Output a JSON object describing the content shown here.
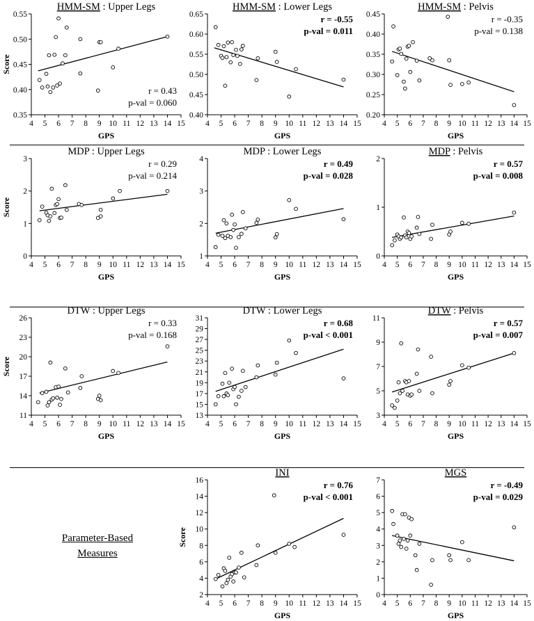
{
  "figure": {
    "section_label_line1": "Parameter-Based",
    "section_label_line2": "Measures"
  },
  "chart_data": [
    {
      "type": "scatter",
      "title": "HMM-SM : Upper Legs",
      "title_underline": "HMM-SM",
      "xlabel": "GPS",
      "ylabel": "Score",
      "xlim": [
        4,
        15
      ],
      "xticks": [
        4,
        5,
        6,
        7,
        8,
        9,
        10,
        11,
        12,
        13,
        14,
        15
      ],
      "ylim": [
        0.35,
        0.55
      ],
      "yticks": [
        0.35,
        0.4,
        0.45,
        0.5,
        0.55
      ],
      "ytick_labels": [
        "0.35",
        "0.40",
        "0.45",
        "0.50",
        "0.55"
      ],
      "r_text": "r = 0.43",
      "p_text": "p-val = 0.060",
      "bold": false,
      "stats_position": "bottom-right",
      "x": [
        4.6,
        4.8,
        5.1,
        5.2,
        5.3,
        5.4,
        5.6,
        5.7,
        5.8,
        5.9,
        6.0,
        6.1,
        6.3,
        6.5,
        6.6,
        7.6,
        7.6,
        8.9,
        9.0,
        9.1,
        10.0,
        10.4,
        14.0
      ],
      "y": [
        0.419,
        0.404,
        0.431,
        0.406,
        0.468,
        0.395,
        0.404,
        0.469,
        0.504,
        0.408,
        0.541,
        0.412,
        0.452,
        0.468,
        0.523,
        0.432,
        0.5,
        0.398,
        0.494,
        0.494,
        0.444,
        0.481,
        0.505
      ],
      "fit": [
        [
          4.5,
          0.437
        ],
        [
          14.0,
          0.505
        ]
      ]
    },
    {
      "type": "scatter",
      "title": "HMM-SM : Lower Legs",
      "title_underline": "HMM-SM",
      "xlabel": "GPS",
      "ylabel": "",
      "xlim": [
        4,
        15
      ],
      "xticks": [
        4,
        5,
        6,
        7,
        8,
        9,
        10,
        11,
        12,
        13,
        14,
        15
      ],
      "ylim": [
        0.4,
        0.65
      ],
      "yticks": [
        0.4,
        0.45,
        0.5,
        0.55,
        0.6,
        0.65
      ],
      "ytick_labels": [
        "0.40",
        "0.45",
        "0.50",
        "0.55",
        "0.60",
        "0.65"
      ],
      "r_text": "r = -0.55",
      "p_text": "p-val = 0.011",
      "bold": true,
      "stats_position": "top-right",
      "x": [
        4.6,
        4.8,
        5.0,
        5.1,
        5.2,
        5.3,
        5.4,
        5.5,
        5.7,
        5.8,
        5.9,
        6.1,
        6.2,
        6.4,
        6.5,
        6.6,
        7.6,
        7.7,
        9.0,
        9.1,
        10.0,
        10.5,
        14.0
      ],
      "y": [
        0.617,
        0.573,
        0.546,
        0.541,
        0.57,
        0.472,
        0.543,
        0.579,
        0.53,
        0.58,
        0.548,
        0.561,
        0.546,
        0.526,
        0.562,
        0.571,
        0.486,
        0.54,
        0.556,
        0.531,
        0.445,
        0.513,
        0.487
      ],
      "fit": [
        [
          4.5,
          0.566
        ],
        [
          14.0,
          0.469
        ]
      ]
    },
    {
      "type": "scatter",
      "title": "HMM-SM : Pelvis",
      "title_underline": "HMM-SM",
      "xlabel": "GPS",
      "ylabel": "",
      "xlim": [
        4,
        15
      ],
      "xticks": [
        4,
        5,
        6,
        7,
        8,
        9,
        10,
        11,
        12,
        13,
        14,
        15
      ],
      "ylim": [
        0.2,
        0.45
      ],
      "yticks": [
        0.2,
        0.25,
        0.3,
        0.35,
        0.4,
        0.45
      ],
      "ytick_labels": [
        "0.20",
        "0.25",
        "0.30",
        "0.35",
        "0.40",
        "0.45"
      ],
      "r_text": "r = -0.35",
      "p_text": "p-val = 0.138",
      "bold": false,
      "stats_position": "top-right",
      "x": [
        4.6,
        4.7,
        5.0,
        5.1,
        5.2,
        5.3,
        5.5,
        5.6,
        5.7,
        5.8,
        5.9,
        6.0,
        6.2,
        6.5,
        6.7,
        7.5,
        7.7,
        8.9,
        9.0,
        9.1,
        10.0,
        10.5,
        14.0
      ],
      "y": [
        0.332,
        0.419,
        0.298,
        0.362,
        0.364,
        0.351,
        0.282,
        0.265,
        0.339,
        0.369,
        0.371,
        0.306,
        0.38,
        0.334,
        0.285,
        0.34,
        0.335,
        0.443,
        0.335,
        0.274,
        0.276,
        0.28,
        0.224
      ],
      "fit": [
        [
          4.6,
          0.357
        ],
        [
          14.0,
          0.257
        ]
      ]
    },
    {
      "type": "scatter",
      "title": "MDP : Upper Legs",
      "title_underline": "",
      "xlabel": "GPS",
      "ylabel": "Score",
      "xlim": [
        4,
        15
      ],
      "xticks": [
        4,
        5,
        6,
        7,
        8,
        9,
        10,
        11,
        12,
        13,
        14,
        15
      ],
      "ylim": [
        0,
        3
      ],
      "yticks": [
        0,
        1,
        2,
        3
      ],
      "ytick_labels": [
        "0",
        "1",
        "2",
        "3"
      ],
      "r_text": "r = 0.29",
      "p_text": "p-val = 0.214",
      "bold": false,
      "stats_position": "top-right",
      "x": [
        4.6,
        4.8,
        5.1,
        5.2,
        5.3,
        5.4,
        5.5,
        5.7,
        5.8,
        5.9,
        6.0,
        6.1,
        6.2,
        6.5,
        6.6,
        7.5,
        7.7,
        8.9,
        9.1,
        9.1,
        10.0,
        10.5,
        14.0
      ],
      "y": [
        1.1,
        1.52,
        1.33,
        1.25,
        1.08,
        1.22,
        2.07,
        1.32,
        1.57,
        1.6,
        1.75,
        1.17,
        1.18,
        2.18,
        1.42,
        1.6,
        1.57,
        1.17,
        1.42,
        1.22,
        1.77,
        2.0,
        2.0
      ],
      "fit": [
        [
          4.6,
          1.39
        ],
        [
          14.0,
          1.9
        ]
      ]
    },
    {
      "type": "scatter",
      "title": "MDP : Lower Legs",
      "title_underline": "",
      "xlabel": "GPS",
      "ylabel": "",
      "xlim": [
        4,
        15
      ],
      "xticks": [
        4,
        5,
        6,
        7,
        8,
        9,
        10,
        11,
        12,
        13,
        14,
        15
      ],
      "ylim": [
        1,
        4
      ],
      "yticks": [
        1,
        2,
        3,
        4
      ],
      "ytick_labels": [
        "1",
        "2",
        "3",
        "4"
      ],
      "r_text": "r = 0.49",
      "p_text": "p-val = 0.028",
      "bold": true,
      "stats_position": "top-right",
      "x": [
        4.6,
        4.8,
        5.1,
        5.2,
        5.3,
        5.4,
        5.5,
        5.7,
        5.8,
        5.9,
        6.0,
        6.1,
        6.3,
        6.5,
        6.6,
        6.8,
        7.6,
        7.7,
        9.0,
        9.1,
        10.0,
        10.5,
        14.0
      ],
      "y": [
        1.27,
        1.65,
        1.62,
        2.1,
        1.55,
        2.0,
        1.62,
        1.58,
        2.27,
        1.8,
        1.97,
        1.25,
        1.58,
        1.68,
        2.35,
        1.85,
        2.02,
        2.12,
        1.57,
        1.67,
        2.72,
        2.45,
        2.13
      ],
      "fit": [
        [
          4.6,
          1.7
        ],
        [
          14.0,
          2.46
        ]
      ]
    },
    {
      "type": "scatter",
      "title": "MDP : Pelvis",
      "title_underline": "MDP",
      "xlabel": "GPS",
      "ylabel": "",
      "xlim": [
        4,
        15
      ],
      "xticks": [
        4,
        5,
        6,
        7,
        8,
        9,
        10,
        11,
        12,
        13,
        14,
        15
      ],
      "ylim": [
        0,
        2
      ],
      "yticks": [
        0,
        1,
        2
      ],
      "ytick_labels": [
        "0",
        "1",
        "2"
      ],
      "r_text": "r = 0.57",
      "p_text": "p-val = 0.008",
      "bold": true,
      "stats_position": "top-right",
      "x": [
        4.6,
        4.8,
        5.0,
        5.1,
        5.2,
        5.3,
        5.5,
        5.6,
        5.7,
        5.8,
        5.9,
        6.0,
        6.1,
        6.5,
        6.6,
        6.7,
        7.6,
        7.7,
        9.0,
        9.1,
        10.0,
        10.5,
        14.0
      ],
      "y": [
        0.22,
        0.32,
        0.44,
        0.4,
        0.35,
        0.38,
        0.79,
        0.42,
        0.38,
        0.5,
        0.47,
        0.35,
        0.4,
        0.58,
        0.8,
        0.45,
        0.35,
        0.64,
        0.44,
        0.5,
        0.68,
        0.66,
        0.89
      ],
      "fit": [
        [
          4.6,
          0.38
        ],
        [
          14.0,
          0.82
        ]
      ]
    },
    {
      "type": "scatter",
      "title": "DTW : Upper Legs",
      "title_underline": "",
      "xlabel": "GPS",
      "ylabel": "Score",
      "xlim": [
        4,
        15
      ],
      "xticks": [
        4,
        5,
        6,
        7,
        8,
        9,
        10,
        11,
        12,
        13,
        14,
        15
      ],
      "ylim": [
        11,
        26
      ],
      "yticks": [
        11,
        14,
        17,
        20,
        23,
        26
      ],
      "ytick_labels": [
        "11",
        "14",
        "17",
        "20",
        "23",
        "26"
      ],
      "r_text": "r = 0.33",
      "p_text": "p-val = 0.168",
      "bold": false,
      "stats_position": "top-right",
      "x": [
        4.5,
        4.8,
        5.1,
        5.2,
        5.3,
        5.4,
        5.5,
        5.6,
        5.8,
        5.9,
        6.0,
        6.1,
        6.2,
        6.5,
        6.7,
        7.6,
        7.7,
        8.9,
        9.0,
        9.1,
        10.0,
        10.4,
        14.0
      ],
      "y": [
        13.0,
        14.4,
        14.6,
        12.5,
        13.0,
        19.1,
        13.4,
        13.6,
        15.3,
        13.7,
        15.4,
        12.6,
        13.5,
        18.2,
        14.5,
        15.2,
        17.0,
        13.5,
        14.0,
        13.3,
        17.8,
        17.5,
        21.6
      ],
      "fit": [
        [
          4.6,
          14.4
        ],
        [
          14.0,
          19.2
        ]
      ]
    },
    {
      "type": "scatter",
      "title": "DTW : Lower Legs",
      "title_underline": "",
      "xlabel": "GPS",
      "ylabel": "",
      "xlim": [
        4,
        15
      ],
      "xticks": [
        4,
        5,
        6,
        7,
        8,
        9,
        10,
        11,
        12,
        13,
        14,
        15
      ],
      "ylim": [
        13,
        31
      ],
      "yticks": [
        13,
        15,
        17,
        19,
        21,
        23,
        25,
        27,
        29,
        31
      ],
      "ytick_labels": [
        "13",
        "15",
        "17",
        "19",
        "21",
        "23",
        "25",
        "27",
        "29",
        "31"
      ],
      "r_text": "r = 0.68",
      "p_text": "p-val < 0.001",
      "bold": true,
      "stats_position": "top-right",
      "x": [
        4.6,
        4.8,
        5.1,
        5.2,
        5.3,
        5.4,
        5.5,
        5.6,
        5.8,
        5.9,
        6.0,
        6.1,
        6.3,
        6.5,
        6.6,
        6.8,
        7.6,
        7.7,
        9.0,
        9.1,
        10.0,
        10.5,
        14.0
      ],
      "y": [
        15.0,
        16.5,
        18.8,
        16.5,
        20.8,
        17.0,
        16.7,
        19.0,
        21.6,
        17.8,
        18.2,
        15.0,
        16.4,
        17.5,
        21.2,
        18.2,
        20.0,
        22.2,
        20.5,
        22.7,
        26.8,
        24.5,
        19.8
      ],
      "fit": [
        [
          4.6,
          17.4
        ],
        [
          14.0,
          25.2
        ]
      ]
    },
    {
      "type": "scatter",
      "title": "DTW : Pelvis",
      "title_underline": "DTW",
      "xlabel": "GPS",
      "ylabel": "",
      "xlim": [
        4,
        15
      ],
      "xticks": [
        4,
        5,
        6,
        7,
        8,
        9,
        10,
        11,
        12,
        13,
        14,
        15
      ],
      "ylim": [
        3,
        11
      ],
      "yticks": [
        3,
        5,
        7,
        9,
        11
      ],
      "ytick_labels": [
        "3",
        "5",
        "7",
        "9",
        "11"
      ],
      "r_text": "r = 0.57",
      "p_text": "p-val = 0.007",
      "bold": true,
      "stats_position": "top-right",
      "x": [
        4.6,
        4.8,
        5.0,
        5.1,
        5.2,
        5.3,
        5.4,
        5.6,
        5.7,
        5.8,
        5.9,
        6.0,
        6.1,
        6.5,
        6.6,
        6.7,
        7.6,
        7.7,
        9.0,
        9.1,
        10.0,
        10.5,
        14.0
      ],
      "y": [
        3.8,
        3.6,
        4.2,
        5.7,
        4.8,
        8.9,
        5.0,
        5.8,
        5.7,
        4.7,
        5.8,
        4.6,
        4.7,
        6.4,
        8.4,
        5.0,
        7.8,
        4.8,
        5.5,
        5.8,
        7.1,
        6.9,
        8.1
      ],
      "fit": [
        [
          4.6,
          4.9
        ],
        [
          14.0,
          8.1
        ]
      ]
    },
    {
      "type": "scatter",
      "title": "INI",
      "title_underline": "INI",
      "xlabel": "GPS",
      "ylabel": "Score",
      "xlim": [
        4,
        15
      ],
      "xticks": [
        4,
        5,
        6,
        7,
        8,
        9,
        10,
        11,
        12,
        13,
        14,
        15
      ],
      "ylim": [
        2,
        16
      ],
      "yticks": [
        2,
        4,
        6,
        8,
        10,
        12,
        14,
        16
      ],
      "ytick_labels": [
        "2",
        "4",
        "6",
        "8",
        "10",
        "12",
        "14",
        "16"
      ],
      "r_text": "r = 0.76",
      "p_text": "p-val < 0.001",
      "bold": true,
      "stats_position": "top-right",
      "x": [
        4.6,
        4.8,
        5.1,
        5.2,
        5.3,
        5.4,
        5.5,
        5.6,
        5.7,
        5.8,
        5.9,
        6.0,
        6.1,
        6.3,
        6.5,
        6.7,
        7.6,
        7.7,
        8.9,
        9.0,
        10.0,
        10.4,
        14.0
      ],
      "y": [
        3.9,
        4.4,
        3.0,
        5.2,
        4.9,
        3.4,
        3.8,
        6.5,
        4.2,
        4.5,
        3.6,
        4.7,
        4.7,
        5.3,
        7.1,
        4.1,
        5.6,
        8.0,
        14.1,
        7.1,
        8.2,
        7.8,
        9.3
      ],
      "fit": [
        [
          4.6,
          3.9
        ],
        [
          14.0,
          11.3
        ]
      ]
    },
    {
      "type": "scatter",
      "title": "MGS",
      "title_underline": "MGS",
      "xlabel": "GPS",
      "ylabel": "",
      "xlim": [
        4,
        15
      ],
      "xticks": [
        4,
        5,
        6,
        7,
        8,
        9,
        10,
        11,
        12,
        13,
        14,
        15
      ],
      "ylim": [
        0,
        7
      ],
      "yticks": [
        0,
        1,
        2,
        3,
        4,
        5,
        6,
        7
      ],
      "ytick_labels": [
        "0",
        "1",
        "2",
        "3",
        "4",
        "5",
        "6",
        "7"
      ],
      "r_text": "r = -0.49",
      "p_text": "p-val = 0.029",
      "bold": true,
      "stats_position": "top-right",
      "x": [
        4.6,
        4.7,
        5.0,
        5.1,
        5.2,
        5.3,
        5.4,
        5.5,
        5.6,
        5.7,
        5.8,
        5.9,
        6.0,
        6.1,
        6.4,
        6.5,
        6.7,
        7.6,
        7.7,
        9.0,
        9.1,
        10.0,
        10.5,
        14.0
      ],
      "y": [
        5.1,
        4.3,
        3.6,
        3.1,
        3.3,
        2.9,
        4.9,
        3.4,
        4.9,
        2.8,
        3.3,
        4.7,
        3.6,
        4.6,
        2.4,
        1.5,
        3.1,
        0.6,
        2.1,
        2.4,
        2.1,
        3.2,
        2.1,
        4.1
      ],
      "fit": [
        [
          4.6,
          3.6
        ],
        [
          14.0,
          2.06
        ]
      ]
    }
  ]
}
